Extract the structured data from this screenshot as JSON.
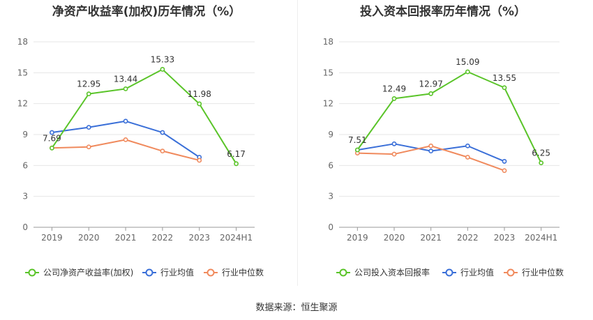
{
  "source": "数据来源：恒生聚源",
  "colors": {
    "company": "#5ac429",
    "avg": "#3a6fd8",
    "median": "#f08a5d",
    "grid": "#e6e6e6",
    "axis": "#999999",
    "text": "#666666"
  },
  "chart_data": [
    {
      "type": "line",
      "title": "净资产收益率(加权)历年情况（%）",
      "categories": [
        "2019",
        "2020",
        "2021",
        "2022",
        "2023",
        "2024H1"
      ],
      "ylim": [
        0,
        18
      ],
      "yticks": [
        0,
        3,
        6,
        9,
        12,
        15,
        18
      ],
      "grid": true,
      "legend_position": "bottom-left",
      "series": [
        {
          "name": "公司净资产收益率(加权)",
          "color": "#5ac429",
          "values": [
            7.69,
            12.95,
            13.44,
            15.33,
            11.98,
            6.17
          ],
          "labels": [
            "7.69",
            "12.95",
            "13.44",
            "15.33",
            "11.98",
            "6.17"
          ]
        },
        {
          "name": "行业均值",
          "color": "#3a6fd8",
          "values": [
            9.2,
            9.7,
            10.3,
            9.2,
            6.8,
            null
          ]
        },
        {
          "name": "行业中位数",
          "color": "#f08a5d",
          "values": [
            7.7,
            7.8,
            8.5,
            7.4,
            6.5,
            null
          ]
        }
      ]
    },
    {
      "type": "line",
      "title": "投入资本回报率历年情况（%）",
      "categories": [
        "2019",
        "2020",
        "2021",
        "2022",
        "2023",
        "2024H1"
      ],
      "ylim": [
        0,
        18
      ],
      "yticks": [
        0,
        3,
        6,
        9,
        12,
        15,
        18
      ],
      "grid": true,
      "legend_position": "bottom-left",
      "series": [
        {
          "name": "公司投入资本回报率",
          "color": "#5ac429",
          "values": [
            7.51,
            12.49,
            12.97,
            15.09,
            13.55,
            6.25
          ],
          "labels": [
            "7.51",
            "12.49",
            "12.97",
            "15.09",
            "13.55",
            "6.25"
          ]
        },
        {
          "name": "行业均值",
          "color": "#3a6fd8",
          "values": [
            7.5,
            8.1,
            7.4,
            7.9,
            6.4,
            null
          ]
        },
        {
          "name": "行业中位数",
          "color": "#f08a5d",
          "values": [
            7.2,
            7.1,
            7.9,
            6.8,
            5.5,
            null
          ]
        }
      ]
    }
  ]
}
